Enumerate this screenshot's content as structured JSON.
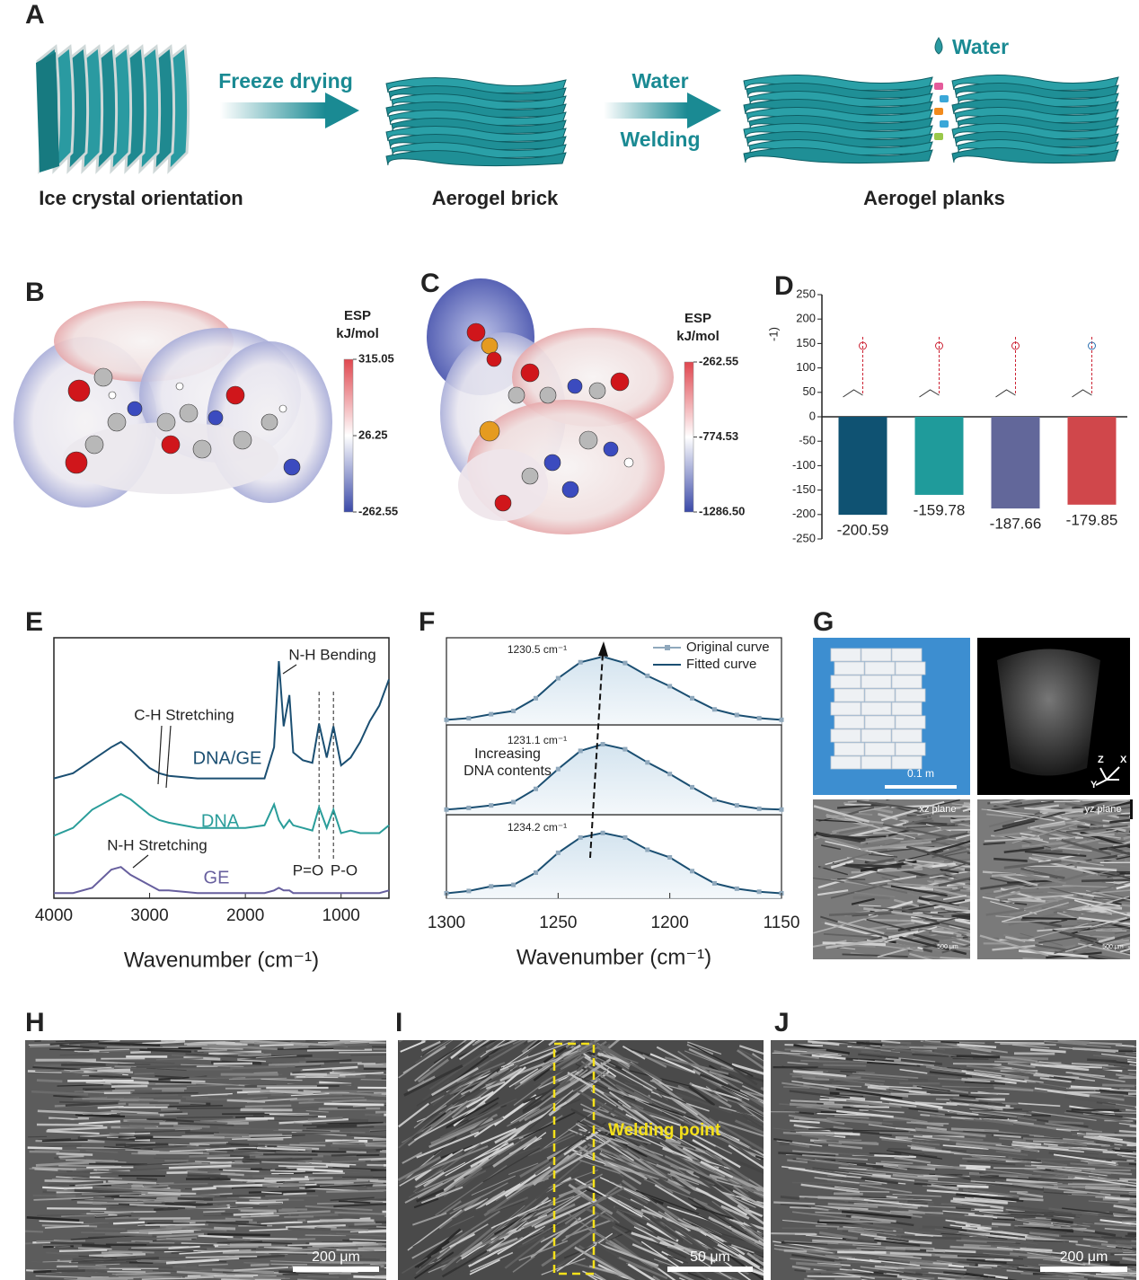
{
  "figure": {
    "panel_labels": [
      "A",
      "B",
      "C",
      "D",
      "E",
      "F",
      "G",
      "H",
      "I",
      "J"
    ],
    "A": {
      "steps": [
        "Freeze drying",
        "Water",
        "Welding"
      ],
      "droplet": "Water",
      "captions": [
        "Ice crystal orientation",
        "Aerogel brick",
        "Aerogel planks"
      ]
    },
    "B": {
      "colorbar": {
        "title": "ESP",
        "unit": "kJ/mol",
        "ticks": [
          315.05,
          26.25,
          -262.55
        ]
      }
    },
    "C": {
      "colorbar": {
        "title": "ESP",
        "unit": "kJ/mol",
        "ticks": [
          -262.55,
          -774.53,
          {
            "value": -1286.5,
            "label": "-1286.50"
          }
        ]
      }
    },
    "G": {
      "scale": "0.1 m",
      "axes": [
        "Z",
        "X",
        "Y"
      ],
      "planes": [
        "xz plane",
        "yz plane"
      ],
      "micro_scales": [
        "500 μm",
        "500 μm"
      ]
    },
    "H": {
      "scale": "200 μm"
    },
    "I": {
      "scale": "50 μm",
      "annotation": "Welding point"
    },
    "J": {
      "scale": "200 μm"
    }
  },
  "chart_data": [
    {
      "type": "bar",
      "ylabel": "-1)",
      "categories": [
        null,
        null,
        null,
        null
      ],
      "values": [
        -200.59,
        -159.78,
        -187.66,
        -179.85
      ],
      "colors": [
        "#0f5272",
        "#1f9b9b",
        "#62679a",
        "#d0474b"
      ],
      "ylim": [
        -250,
        250
      ],
      "yticks": [
        -250,
        -200,
        -150,
        -100,
        -50,
        0,
        50,
        100,
        150,
        200,
        250
      ]
    },
    {
      "type": "line",
      "xlabel": "Wavenumber (cm⁻¹)",
      "x": [
        4000,
        3800,
        3600,
        3400,
        3300,
        3200,
        3000,
        2900,
        2800,
        2500,
        2000,
        1800,
        1700,
        1650,
        1600,
        1540,
        1500,
        1400,
        1300,
        1230,
        1150,
        1080,
        1000,
        900,
        800,
        700,
        600,
        500
      ],
      "xlim": [
        4000,
        500
      ],
      "xticks": [
        4000,
        3000,
        2000,
        1000
      ],
      "ylim": [
        0,
        100
      ],
      "series": [
        {
          "name": "DNA/GE",
          "color": "#1b4f72",
          "values": [
            46,
            48,
            53,
            58,
            60,
            57,
            50,
            48,
            47,
            46,
            46,
            46,
            58,
            91,
            66,
            78,
            56,
            53,
            52,
            67,
            54,
            66,
            51,
            54,
            60,
            68,
            74,
            84
          ]
        },
        {
          "name": "DNA",
          "color": "#2a9d9a",
          "values": [
            24,
            27,
            34,
            38,
            40,
            38,
            32,
            30,
            29,
            27,
            27,
            28,
            36,
            30,
            27,
            30,
            28,
            27,
            26,
            35,
            27,
            34,
            25,
            26,
            25,
            25,
            25,
            28
          ]
        },
        {
          "name": "GE",
          "color": "#675f9e",
          "values": [
            2,
            2,
            4,
            11,
            12,
            9,
            5,
            3,
            3,
            2,
            2,
            2,
            3,
            4,
            3,
            3,
            2,
            2,
            2,
            2,
            2,
            2,
            2,
            2,
            2,
            2,
            2,
            3
          ]
        }
      ],
      "annotations": [
        "N-H Bending",
        "C-H Stretching",
        "N-H Stretching",
        "P=O",
        "P-O"
      ]
    },
    {
      "type": "stacked-spectra",
      "xlabel": "Wavenumber (cm⁻¹)",
      "x": [
        1300,
        1290,
        1280,
        1270,
        1260,
        1250,
        1240,
        1230,
        1220,
        1210,
        1200,
        1190,
        1180,
        1170,
        1160,
        1150
      ],
      "xlim": [
        1300,
        1150
      ],
      "xticks": [
        1300,
        1250,
        1200,
        1150
      ],
      "ylim": [
        0,
        100
      ],
      "legend": [
        {
          "name": "Original curve",
          "color": "#8fa8bc"
        },
        {
          "name": "Fitted curve",
          "color": "#1b4f72"
        }
      ],
      "subplots": [
        {
          "annotation": "1230.5 cm⁻¹",
          "values": [
            3,
            5,
            10,
            14,
            30,
            55,
            75,
            82,
            74,
            58,
            45,
            30,
            16,
            9,
            5,
            3
          ]
        },
        {
          "annotation": "1231.1 cm⁻¹",
          "values": [
            3,
            5,
            8,
            12,
            28,
            52,
            74,
            82,
            76,
            60,
            46,
            30,
            15,
            8,
            4,
            3
          ]
        },
        {
          "annotation": "1234.2 cm⁻¹",
          "values": [
            3,
            6,
            12,
            14,
            30,
            56,
            76,
            82,
            76,
            60,
            50,
            32,
            16,
            9,
            5,
            3
          ]
        }
      ],
      "note": [
        "Increasing",
        "DNA contents"
      ]
    }
  ]
}
